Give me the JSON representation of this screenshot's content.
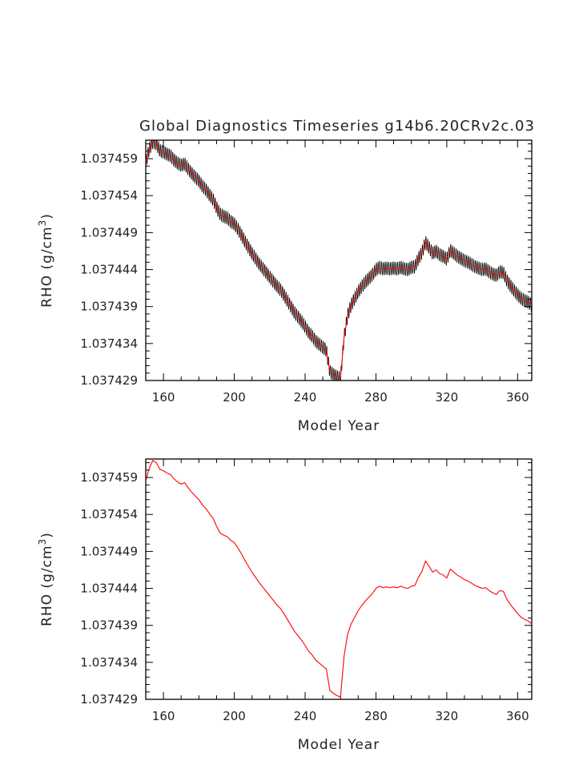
{
  "title": "Global Diagnostics Timeseries g14b6.20CRv2c.03",
  "chart_data": [
    {
      "type": "line",
      "title": "Global Diagnostics Timeseries g14b6.20CRv2c.03",
      "xlabel": "Model Year",
      "ylabel": "RHO (g/cm",
      "ylabel_sup": "3",
      "ylabel_close": ")",
      "xlim": [
        150,
        368
      ],
      "ylim": [
        1.037429,
        1.0374615
      ],
      "xticks": [
        160,
        200,
        240,
        280,
        320,
        360
      ],
      "yticks": [
        "1.037429",
        "1.037434",
        "1.037439",
        "1.037444",
        "1.037449",
        "1.037454",
        "1.037459"
      ],
      "ytick_values": [
        1.037429,
        1.037434,
        1.037439,
        1.037444,
        1.037449,
        1.037454,
        1.037459
      ],
      "series": [
        {
          "kind": "monthly",
          "color": "#000000",
          "amplitude": 9e-07
        },
        {
          "kind": "annual_mean",
          "color": "#ff0000"
        }
      ],
      "annual_mean": {
        "x": [
          150,
          152,
          154,
          156,
          158,
          160,
          162,
          164,
          166,
          168,
          170,
          172,
          174,
          176,
          178,
          180,
          182,
          184,
          186,
          188,
          190,
          192,
          194,
          196,
          198,
          200,
          202,
          204,
          206,
          208,
          210,
          212,
          214,
          216,
          218,
          220,
          222,
          224,
          226,
          228,
          230,
          232,
          234,
          236,
          238,
          240,
          242,
          244,
          246,
          248,
          250,
          252,
          254,
          256,
          258,
          260,
          262,
          264,
          266,
          268,
          270,
          272,
          274,
          276,
          278,
          280,
          282,
          284,
          286,
          288,
          290,
          292,
          294,
          296,
          298,
          300,
          302,
          304,
          306,
          308,
          310,
          312,
          314,
          316,
          318,
          320,
          322,
          324,
          326,
          328,
          330,
          332,
          334,
          336,
          338,
          340,
          342,
          344,
          346,
          348,
          350,
          352,
          354,
          356,
          358,
          360,
          362,
          364,
          366,
          368
        ],
        "y": [
          1.0374585,
          1.0374603,
          1.0374613,
          1.037461,
          1.0374601,
          1.0374599,
          1.0374596,
          1.0374594,
          1.0374588,
          1.0374584,
          1.0374581,
          1.0374583,
          1.0374576,
          1.037457,
          1.0374565,
          1.037456,
          1.0374553,
          1.0374548,
          1.0374541,
          1.0374535,
          1.0374524,
          1.0374515,
          1.0374512,
          1.037451,
          1.0374505,
          1.0374502,
          1.0374495,
          1.0374487,
          1.0374478,
          1.037447,
          1.0374462,
          1.0374455,
          1.0374448,
          1.0374442,
          1.0374436,
          1.037443,
          1.0374424,
          1.0374418,
          1.0374413,
          1.0374406,
          1.0374398,
          1.037439,
          1.0374382,
          1.0374376,
          1.037437,
          1.0374363,
          1.0374355,
          1.037435,
          1.0374343,
          1.0374339,
          1.0374335,
          1.0374331,
          1.0374302,
          1.0374298,
          1.0374295,
          1.0374293,
          1.0374348,
          1.0374378,
          1.0374392,
          1.0374401,
          1.037441,
          1.0374417,
          1.0374423,
          1.0374428,
          1.0374433,
          1.037444,
          1.0374443,
          1.0374441,
          1.0374442,
          1.0374441,
          1.0374442,
          1.0374441,
          1.0374443,
          1.0374441,
          1.037444,
          1.0374443,
          1.0374444,
          1.0374455,
          1.0374463,
          1.0374477,
          1.037447,
          1.0374462,
          1.0374465,
          1.037446,
          1.0374458,
          1.0374454,
          1.0374466,
          1.0374462,
          1.0374458,
          1.0374455,
          1.0374452,
          1.037445,
          1.0374447,
          1.0374444,
          1.0374442,
          1.037444,
          1.0374441,
          1.0374437,
          1.0374434,
          1.0374432,
          1.0374437,
          1.0374436,
          1.0374425,
          1.0374418,
          1.0374412,
          1.0374406,
          1.0374401,
          1.0374398,
          1.0374396,
          1.0374392
        ]
      }
    },
    {
      "type": "line",
      "title": "",
      "xlabel": "Model Year",
      "ylabel": "RHO (g/cm",
      "ylabel_sup": "3",
      "ylabel_close": ")",
      "xlim": [
        150,
        368
      ],
      "ylim": [
        1.037429,
        1.0374615
      ],
      "xticks": [
        160,
        200,
        240,
        280,
        320,
        360
      ],
      "yticks": [
        "1.037429",
        "1.037434",
        "1.037439",
        "1.037444",
        "1.037449",
        "1.037454",
        "1.037459"
      ],
      "ytick_values": [
        1.037429,
        1.037434,
        1.037439,
        1.037444,
        1.037449,
        1.037454,
        1.037459
      ],
      "series": [
        {
          "kind": "annual_mean",
          "color": "#ff0000"
        }
      ]
    }
  ]
}
